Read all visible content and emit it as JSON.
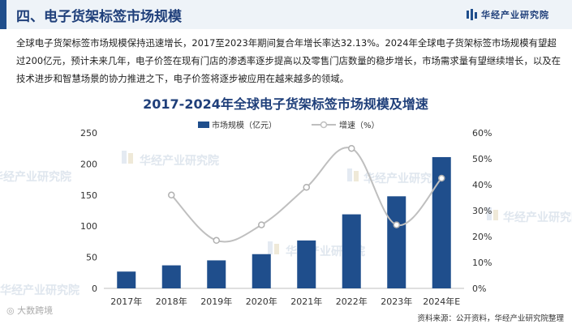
{
  "header": {
    "title": "四、电子货架标签市场规模",
    "logo_text": "华经产业研究院"
  },
  "intro": "全球电子货架标签市场规模保持迅速增长，2017至2023年期间复合年增长率达32.13%。2024年全球电子货架标签市场规模有望超过200亿元，预计未来几年，电子价签在现有门店的渗透率逐步提高以及零售门店数量的稳步增长，市场需求量有望继续增长，以及在技术进步和智慧场景的协力推进之下，电子价签将逐步被应用在越来越多的领域。",
  "watermark": "华经产业研究院",
  "footer_mark": "大数跨境",
  "source": "资料来源：公开资料，华经产业研究院整理",
  "colors": {
    "bar": "#1f4e8c",
    "line": "#bfbfbf",
    "title": "#1f3f7a"
  },
  "chart_data": {
    "type": "bar",
    "title": "2017-2024年全球电子货架标签市场规模及增速",
    "categories": [
      "2017年",
      "2018年",
      "2019年",
      "2020年",
      "2021年",
      "2022年",
      "2023年",
      "2024年E"
    ],
    "series": [
      {
        "name": "市场规模（亿元）",
        "type": "bar",
        "axis": "left",
        "values": [
          27,
          37,
          45,
          55,
          77,
          119,
          148,
          211
        ]
      },
      {
        "name": "增速（%）",
        "type": "line",
        "axis": "right",
        "values": [
          null,
          36,
          18.5,
          24.5,
          39,
          54,
          24.5,
          42.5
        ]
      }
    ],
    "y_left": {
      "min": 0,
      "max": 250,
      "ticks": [
        0,
        50,
        100,
        150,
        200,
        250
      ]
    },
    "y_right": {
      "min": 0,
      "max": 60,
      "ticks": [
        "0%",
        "10%",
        "20%",
        "30%",
        "40%",
        "50%",
        "60%"
      ]
    },
    "legend": "top-center",
    "grid": false
  }
}
